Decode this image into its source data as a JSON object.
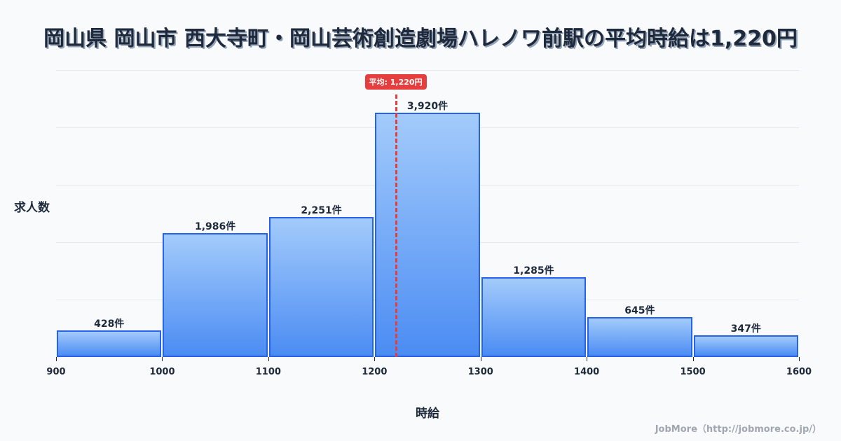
{
  "title": "岡山県 岡山市 西大寺町・岡山芸術創造劇場ハレノワ前駅の平均時給は1,220円",
  "ylabel": "求人数",
  "xlabel": "時給",
  "credit": "JobMore（http://jobmore.co.jp/）",
  "average": {
    "value": 1220,
    "label": "平均: 1,220円",
    "color": "#e53e3e"
  },
  "colors": {
    "bar_border": "#2563eb",
    "bar_top": "#a3cbfb",
    "bar_bottom": "#4b8cf3",
    "background": "#f8fafc"
  },
  "chart_data": {
    "type": "bar",
    "title": "岡山県 岡山市 西大寺町・岡山芸術創造劇場ハレノワ前駅の平均時給は1,220円",
    "xlabel": "時給",
    "ylabel": "求人数",
    "bins": [
      [
        900,
        1000
      ],
      [
        1000,
        1100
      ],
      [
        1100,
        1200
      ],
      [
        1200,
        1300
      ],
      [
        1300,
        1400
      ],
      [
        1400,
        1500
      ],
      [
        1500,
        1600
      ]
    ],
    "categories": [
      "900-1000",
      "1000-1100",
      "1100-1200",
      "1200-1300",
      "1300-1400",
      "1400-1500",
      "1500-1600"
    ],
    "values": [
      428,
      1986,
      2251,
      3920,
      1285,
      645,
      347
    ],
    "value_labels": [
      "428件",
      "1,986件",
      "2,251件",
      "3,920件",
      "1,285件",
      "645件",
      "347件"
    ],
    "x_ticks": [
      "900",
      "1000",
      "1100",
      "1200",
      "1300",
      "1400",
      "1500",
      "1600"
    ],
    "xlim": [
      900,
      1600
    ],
    "ylim": [
      0,
      4606
    ],
    "grid": true,
    "annotations": [
      {
        "type": "vline",
        "x": 1220,
        "label": "平均: 1,220円"
      }
    ]
  }
}
